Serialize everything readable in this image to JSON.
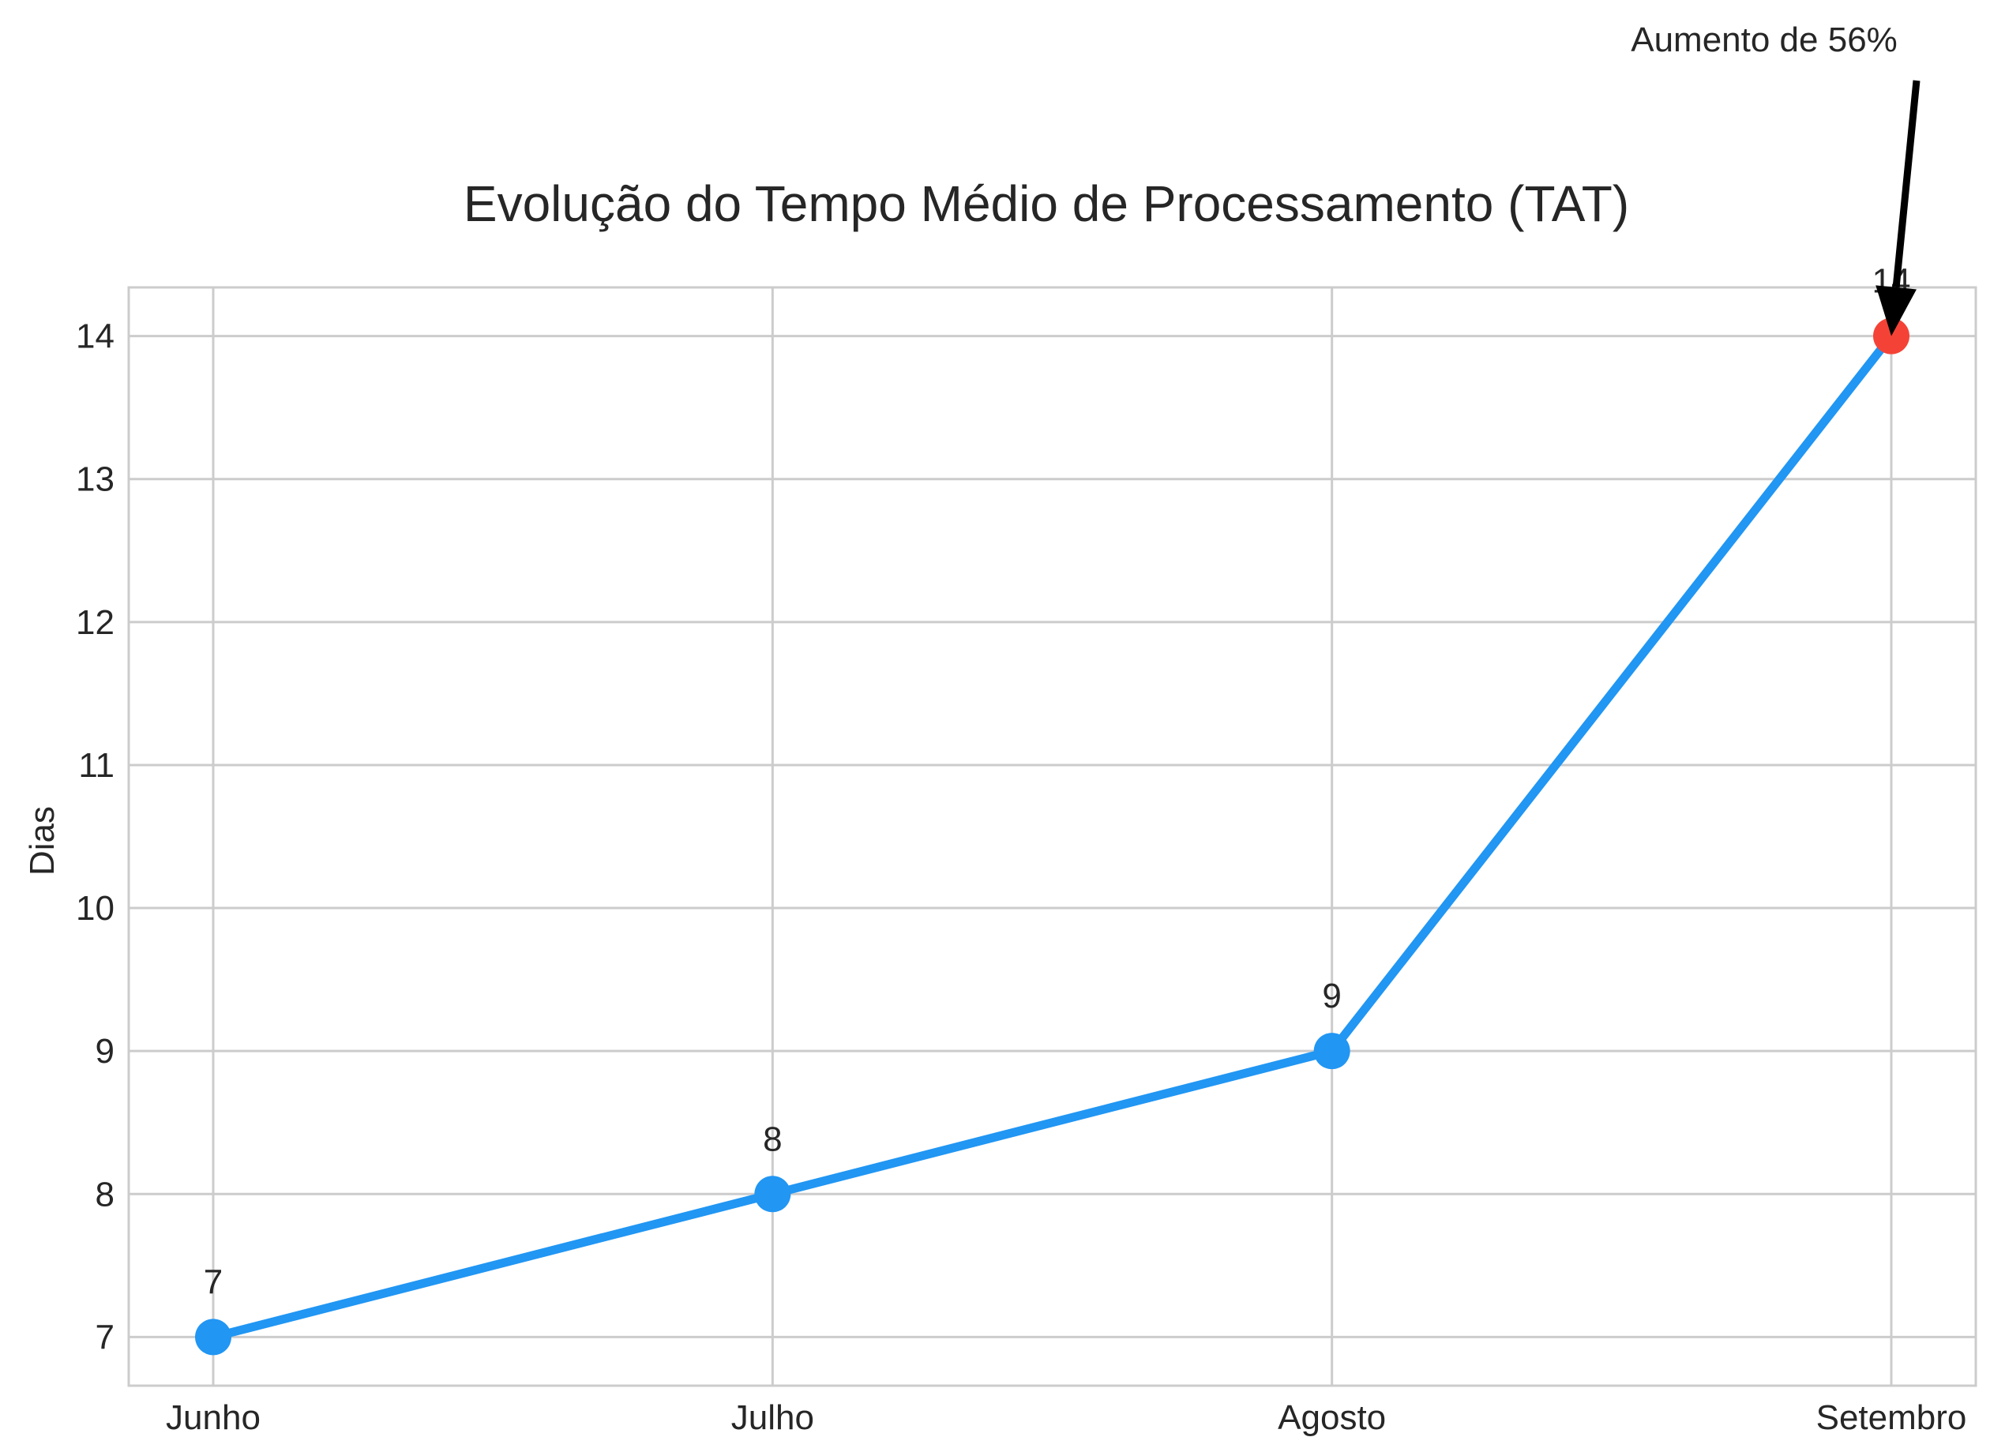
{
  "chart_data": {
    "type": "line",
    "title": "Evolução do Tempo Médio de Processamento (TAT)",
    "xlabel": "",
    "ylabel": "Dias",
    "categories": [
      "Junho",
      "Julho",
      "Agosto",
      "Setembro"
    ],
    "series": [
      {
        "values": [
          7,
          8,
          9,
          14
        ],
        "color": "#2196F3"
      }
    ],
    "data_labels": [
      "7",
      "8",
      "9",
      "14"
    ],
    "highlight": {
      "index": 3,
      "color": "#F44336"
    },
    "y_ticks": [
      7,
      8,
      9,
      10,
      11,
      12,
      13,
      14
    ],
    "ylim": [
      6.66,
      14.34
    ],
    "grid": true,
    "annotation": {
      "text": "Aumento de 56%",
      "target_category": "Setembro",
      "target_value": 14,
      "arrow_color": "#000000"
    }
  }
}
